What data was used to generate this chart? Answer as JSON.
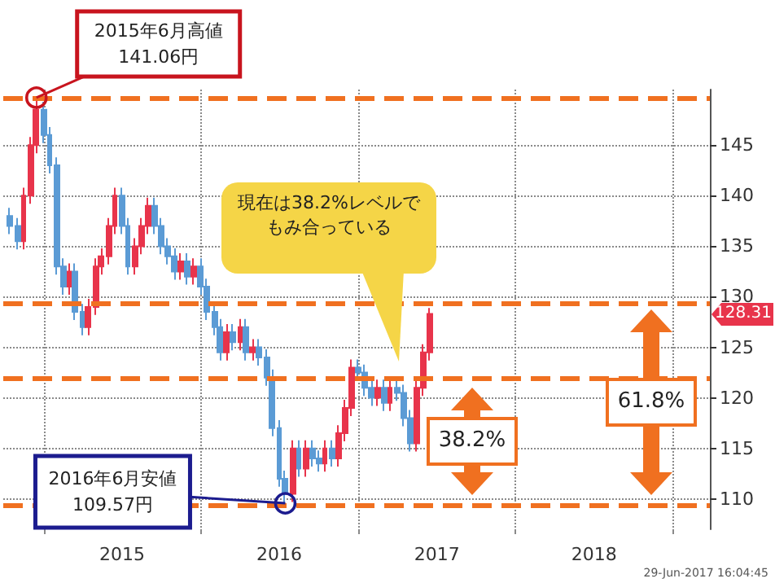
{
  "chart_data": {
    "type": "candlestick",
    "x": [
      "2014-10-15",
      "2014-11-01",
      "2014-11-15",
      "2014-12-01",
      "2014-12-15",
      "2015-01-01",
      "2015-01-15",
      "2015-02-01",
      "2015-02-15",
      "2015-03-01",
      "2015-03-15",
      "2015-04-01",
      "2015-04-15",
      "2015-05-01",
      "2015-05-15",
      "2015-06-01",
      "2015-06-15",
      "2015-07-01",
      "2015-07-15",
      "2015-08-01",
      "2015-08-15",
      "2015-09-01",
      "2015-09-15",
      "2015-10-01",
      "2015-10-15",
      "2015-11-01",
      "2015-11-15",
      "2015-12-01",
      "2015-12-15",
      "2016-01-01",
      "2016-01-15",
      "2016-02-01",
      "2016-02-15",
      "2016-03-01",
      "2016-03-15",
      "2016-04-01",
      "2016-04-15",
      "2016-05-01",
      "2016-05-15",
      "2016-06-01",
      "2016-06-15",
      "2016-07-01",
      "2016-07-15",
      "2016-08-01",
      "2016-08-15",
      "2016-09-01",
      "2016-09-15",
      "2016-10-01",
      "2016-10-15",
      "2016-11-01",
      "2016-11-15",
      "2016-12-01",
      "2016-12-15",
      "2017-01-01",
      "2017-01-15",
      "2017-02-01",
      "2017-02-15",
      "2017-03-01",
      "2017-03-15",
      "2017-04-01",
      "2017-04-15",
      "2017-05-01",
      "2017-05-15",
      "2017-06-01",
      "2017-06-15"
    ],
    "ohlc": [
      [
        138,
        138.8,
        136.2,
        137
      ],
      [
        137,
        137.8,
        134.7,
        135.5
      ],
      [
        135.5,
        140.8,
        134.7,
        140
      ],
      [
        140,
        145.8,
        139.2,
        145
      ],
      [
        145,
        149.7,
        144.2,
        148.5
      ],
      [
        148.5,
        149.3,
        145.2,
        146
      ],
      [
        146,
        146.8,
        142.2,
        143
      ],
      [
        143,
        143.8,
        132.2,
        133
      ],
      [
        133,
        133.8,
        130.2,
        131
      ],
      [
        131,
        133.3,
        130.2,
        132.5
      ],
      [
        132.5,
        133.3,
        127.7,
        128.5
      ],
      [
        128.5,
        129.3,
        126.2,
        127
      ],
      [
        127,
        129.8,
        126.2,
        129
      ],
      [
        129,
        133.8,
        128.2,
        133
      ],
      [
        133,
        134.8,
        132.2,
        134
      ],
      [
        134,
        137.8,
        133.2,
        137
      ],
      [
        137,
        140.8,
        136.2,
        140
      ],
      [
        140,
        140.8,
        136.2,
        137
      ],
      [
        137,
        137.8,
        132.2,
        133
      ],
      [
        133,
        135.8,
        132.2,
        135
      ],
      [
        135,
        137.8,
        134.2,
        137
      ],
      [
        137,
        139.8,
        136.2,
        139
      ],
      [
        139,
        139.8,
        136.2,
        137
      ],
      [
        137,
        137.8,
        134.2,
        135
      ],
      [
        135,
        135.8,
        133.2,
        134
      ],
      [
        134,
        134.8,
        131.7,
        132.5
      ],
      [
        132.5,
        134.3,
        131.7,
        133.5
      ],
      [
        133.5,
        134.3,
        131.2,
        132
      ],
      [
        132,
        133.8,
        131.2,
        133
      ],
      [
        133,
        133.8,
        130.2,
        131
      ],
      [
        131,
        131.8,
        127.7,
        128.5
      ],
      [
        128.5,
        129.3,
        126.2,
        127
      ],
      [
        127,
        127.8,
        123.7,
        124.5
      ],
      [
        124.5,
        127.3,
        123.7,
        126.5
      ],
      [
        126.5,
        127.3,
        124.7,
        125.5
      ],
      [
        125.5,
        127.8,
        124.7,
        127
      ],
      [
        127,
        127.8,
        123.7,
        124.5
      ],
      [
        124.5,
        125.8,
        123.7,
        125
      ],
      [
        125,
        125.8,
        123.2,
        124
      ],
      [
        124,
        124.8,
        121.2,
        122
      ],
      [
        122,
        122.8,
        116.2,
        117
      ],
      [
        117,
        117.8,
        111.2,
        112
      ],
      [
        112,
        112.8,
        109.57,
        110.5
      ],
      [
        110.5,
        115.8,
        109.7,
        115
      ],
      [
        115,
        115.8,
        112.2,
        113
      ],
      [
        113,
        115.8,
        112.2,
        115
      ],
      [
        115,
        115.8,
        113.2,
        114
      ],
      [
        114,
        114.8,
        112.7,
        113.5
      ],
      [
        113.5,
        115.8,
        112.7,
        115
      ],
      [
        115,
        115.8,
        113.2,
        114
      ],
      [
        114,
        117.3,
        113.2,
        116.5
      ],
      [
        116.5,
        119.8,
        115.7,
        119
      ],
      [
        119,
        123.8,
        118.2,
        123
      ],
      [
        123,
        123.8,
        121.7,
        122.5
      ],
      [
        122.5,
        123.3,
        120.2,
        121
      ],
      [
        121,
        121.8,
        119.2,
        120
      ],
      [
        120,
        121.8,
        119.2,
        121
      ],
      [
        121,
        121.8,
        118.7,
        119.5
      ],
      [
        119.5,
        121.8,
        118.7,
        121
      ],
      [
        121,
        121.8,
        119.7,
        120.5
      ],
      [
        120.5,
        121.3,
        117.2,
        118
      ],
      [
        118,
        118.8,
        114.7,
        115.5
      ],
      [
        115.5,
        121.8,
        114.7,
        121
      ],
      [
        121,
        125.3,
        120.2,
        124.5
      ],
      [
        124.5,
        128.9,
        123.7,
        128.31
      ]
    ],
    "colors": [
      "#5b9bd5",
      "#5b9bd5",
      "#e8344b",
      "#e8344b",
      "#e8344b",
      "#5b9bd5",
      "#5b9bd5",
      "#5b9bd5",
      "#5b9bd5",
      "#e8344b",
      "#5b9bd5",
      "#5b9bd5",
      "#e8344b",
      "#e8344b",
      "#e8344b",
      "#e8344b",
      "#e8344b",
      "#5b9bd5",
      "#5b9bd5",
      "#e8344b",
      "#e8344b",
      "#e8344b",
      "#5b9bd5",
      "#5b9bd5",
      "#5b9bd5",
      "#5b9bd5",
      "#e8344b",
      "#5b9bd5",
      "#e8344b",
      "#5b9bd5",
      "#5b9bd5",
      "#5b9bd5",
      "#5b9bd5",
      "#e8344b",
      "#5b9bd5",
      "#e8344b",
      "#5b9bd5",
      "#e8344b",
      "#5b9bd5",
      "#5b9bd5",
      "#5b9bd5",
      "#5b9bd5",
      "#5b9bd5",
      "#e8344b",
      "#5b9bd5",
      "#e8344b",
      "#5b9bd5",
      "#5b9bd5",
      "#e8344b",
      "#5b9bd5",
      "#e8344b",
      "#e8344b",
      "#e8344b",
      "#5b9bd5",
      "#5b9bd5",
      "#5b9bd5",
      "#e8344b",
      "#5b9bd5",
      "#e8344b",
      "#5b9bd5",
      "#5b9bd5",
      "#5b9bd5",
      "#e8344b",
      "#e8344b",
      "#e8344b"
    ],
    "xlim": [
      "2014-09-29",
      "2019-03-28"
    ],
    "xticks": [
      {
        "value": "2015-01-01",
        "label": null
      },
      {
        "value": "2015-07-02",
        "label": "2015"
      },
      {
        "value": "2016-01-01",
        "label": null
      },
      {
        "value": "2016-07-01",
        "label": "2016"
      },
      {
        "value": "2017-01-01",
        "label": null
      },
      {
        "value": "2017-07-02",
        "label": "2017"
      },
      {
        "value": "2018-01-01",
        "label": null
      },
      {
        "value": "2018-07-02",
        "label": "2018"
      },
      {
        "value": "2019-01-01",
        "label": null
      }
    ],
    "ylim": [
      107,
      150.5
    ],
    "yticks": [
      110,
      115,
      120,
      125,
      130,
      135,
      140,
      145
    ],
    "grid": true,
    "ref_lines": [
      {
        "axis": "y",
        "value": 149.7,
        "color": "#f07020",
        "line_style": "dashed"
      },
      {
        "axis": "y",
        "value": 129.4,
        "color": "#f07020",
        "line_style": "dashed"
      },
      {
        "axis": "y",
        "value": 121.9,
        "color": "#f07020",
        "line_style": "dashed"
      },
      {
        "axis": "y",
        "value": 109.4,
        "color": "#f07020",
        "line_style": "dashed"
      }
    ],
    "annotations": [
      {
        "text": "2015年6月高値\n141.06円",
        "x": "2014-12-15",
        "y": 149.7
      },
      {
        "text": "2016年6月安値\n109.57円",
        "x": "2016-07-15",
        "y": 109.57
      },
      "現在は38.2%レベルでもみ合っている",
      "128.31",
      "29-Jun-2017 16:04:45",
      "38.2%",
      "61.8%"
    ]
  }
}
